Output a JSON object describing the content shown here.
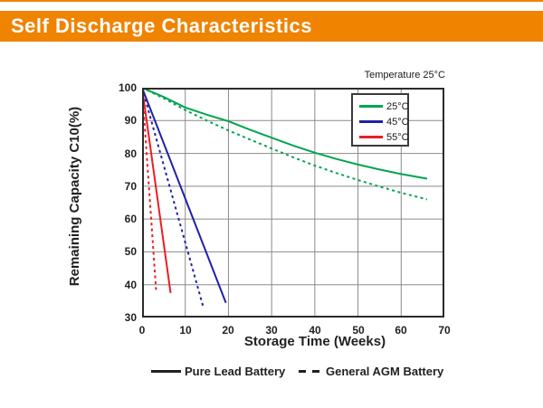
{
  "header": {
    "title": "Self Discharge Characteristics",
    "bar_color": "#F08300"
  },
  "chart": {
    "annotation": "Temperature 25°C",
    "temp_legend": [
      {
        "label": "25°C",
        "color": "#00A551"
      },
      {
        "label": "45°C",
        "color": "#2020A8"
      },
      {
        "label": "55°C",
        "color": "#EC1C24"
      }
    ],
    "style_legend": [
      {
        "label": "Pure Lead Battery",
        "style": "solid"
      },
      {
        "label": "General AGM Battery",
        "style": "dashed"
      }
    ]
  },
  "chart_data": {
    "type": "line",
    "title": "Self Discharge Characteristics",
    "xlabel": "Storage Time (Weeks)",
    "ylabel": "Remaining Capacity C10(%)",
    "annotation": "Temperature 25°C",
    "xlim": [
      0,
      70
    ],
    "ylim": [
      30,
      100
    ],
    "xticks": [
      0,
      10,
      20,
      30,
      40,
      50,
      60,
      70
    ],
    "yticks": [
      100,
      90,
      80,
      70,
      60,
      50,
      40,
      30
    ],
    "grid": true,
    "legend_position": "top-right",
    "series": [
      {
        "name": "25C-pure-lead",
        "legend": "25°C",
        "battery": "Pure Lead Battery",
        "color": "#00A551",
        "dash": false,
        "x": [
          0,
          5,
          10,
          15,
          20,
          25,
          30,
          35,
          40,
          45,
          50,
          55,
          60,
          66
        ],
        "y": [
          100,
          97.2,
          94,
          91.8,
          89.8,
          87.2,
          84.8,
          82.4,
          80.2,
          78.3,
          76.6,
          75.1,
          73.7,
          72.3
        ]
      },
      {
        "name": "25C-general-agm",
        "legend": "25°C",
        "battery": "General AGM Battery",
        "color": "#00A551",
        "dash": true,
        "x": [
          0,
          5,
          10,
          15,
          20,
          25,
          30,
          35,
          40,
          45,
          50,
          55,
          60,
          66
        ],
        "y": [
          100,
          96.8,
          93.2,
          90,
          87,
          84.2,
          81.5,
          78.8,
          76.3,
          74,
          71.9,
          69.9,
          68,
          66
        ]
      },
      {
        "name": "45C-pure-lead",
        "legend": "45°C",
        "battery": "Pure Lead Battery",
        "color": "#2020A8",
        "dash": false,
        "x": [
          0,
          19.4
        ],
        "y": [
          100,
          34.5
        ]
      },
      {
        "name": "45C-general-agm",
        "legend": "45°C",
        "battery": "General AGM Battery",
        "color": "#2020A8",
        "dash": true,
        "x": [
          0,
          14.2
        ],
        "y": [
          100,
          33
        ]
      },
      {
        "name": "55C-pure-lead",
        "legend": "55°C",
        "battery": "Pure Lead Battery",
        "color": "#EC1C24",
        "dash": false,
        "x": [
          0,
          6.6
        ],
        "y": [
          100,
          37.5
        ]
      },
      {
        "name": "55C-general-agm",
        "legend": "55°C",
        "battery": "General AGM Battery",
        "color": "#EC1C24",
        "dash": true,
        "x": [
          0,
          3.3
        ],
        "y": [
          100,
          37.5
        ]
      }
    ]
  }
}
